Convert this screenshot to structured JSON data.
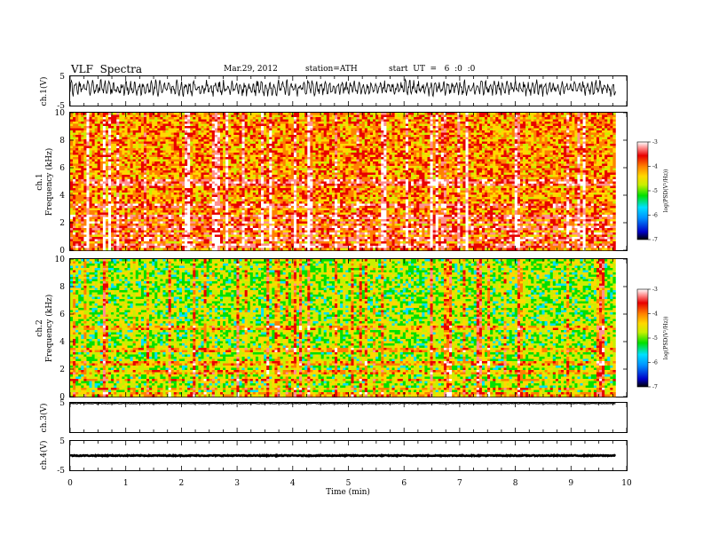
{
  "header": {
    "title": "VLF  Spectra",
    "date": "Mar.29, 2012",
    "station": "station=ATH",
    "start": "start  UT  =   6  :0  :0"
  },
  "chart_data": [
    {
      "type": "line",
      "panel": "ch1_waveform",
      "ylabel": "ch.1(V)",
      "ylim": [
        -5,
        5
      ],
      "yticks": [
        "5",
        "-5"
      ],
      "xlim": [
        0,
        10
      ],
      "note_values": "dense waveform oscillating roughly between -2 and 4 V across 0–9.8 min",
      "series": [
        {
          "values_range": [
            -2,
            4
          ]
        }
      ]
    },
    {
      "type": "heatmap",
      "panel": "ch1_spectrogram",
      "ylabel": "ch.1\nFrequency  (kHz)",
      "ylabel_lines": [
        "ch.1",
        "Frequency  (kHz)"
      ],
      "ylim": [
        0,
        10
      ],
      "yticks": [
        "0",
        "2",
        "4",
        "6",
        "8",
        "10"
      ],
      "xlim": [
        0,
        9.8
      ],
      "colorbar": {
        "label": "log(PSD(V²/Hz))",
        "range": [
          -7,
          -3
        ],
        "ticks": [
          "-3",
          "-4",
          "-5",
          "-6",
          "-7"
        ]
      },
      "bands_khz": [
        0.3,
        0.8,
        1.2,
        1.6,
        2.0,
        2.4,
        3.2,
        4.8,
        5.0
      ],
      "dominant_level": -4.3
    },
    {
      "type": "heatmap",
      "panel": "ch2_spectrogram",
      "ylabel": "ch.2\nFrequency  (kHz)",
      "ylabel_lines": [
        "ch.2",
        "Frequency  (kHz)"
      ],
      "ylim": [
        0,
        10
      ],
      "yticks": [
        "0",
        "2",
        "4",
        "6",
        "8",
        "10"
      ],
      "xlim": [
        0,
        9.8
      ],
      "colorbar": {
        "label": "log(PSD(V²/Hz))",
        "range": [
          -7,
          -3
        ],
        "ticks": [
          "-3",
          "-4",
          "-5",
          "-6",
          "-7"
        ]
      },
      "bands_khz": [
        0.2,
        0.6,
        1.2,
        1.8,
        2.4,
        3.4,
        5.0
      ],
      "dominant_level": -5.1
    },
    {
      "type": "line",
      "panel": "ch3_waveform",
      "ylabel": "ch.3(V)",
      "ylim": [
        -5,
        5
      ],
      "yticks": [
        "5"
      ],
      "xlim": [
        0,
        10
      ],
      "series": [
        {
          "constant": 5
        }
      ]
    },
    {
      "type": "line",
      "panel": "ch4_waveform",
      "ylabel": "ch.4(V)",
      "ylim": [
        -5,
        5
      ],
      "yticks": [
        "5",
        "-5"
      ],
      "xlim": [
        0,
        10
      ],
      "series": [
        {
          "constant": 0
        }
      ]
    }
  ],
  "xaxis": {
    "label": "Time  (min)",
    "ticks": [
      "0",
      "1",
      "2",
      "3",
      "4",
      "5",
      "6",
      "7",
      "8",
      "9",
      "10"
    ]
  },
  "colors": {
    "colormap": [
      "#000000",
      "#0000c8",
      "#0090ff",
      "#00e0ff",
      "#00e000",
      "#c8f000",
      "#ffd800",
      "#ff8000",
      "#e80000",
      "#ff9090",
      "#ffffff"
    ]
  }
}
